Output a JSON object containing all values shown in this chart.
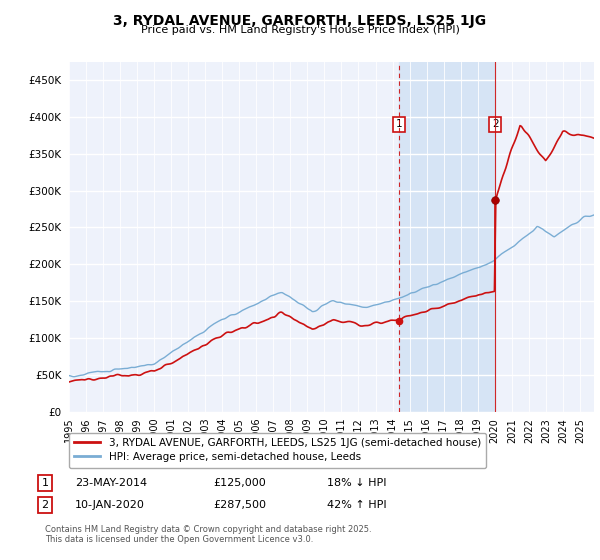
{
  "title": "3, RYDAL AVENUE, GARFORTH, LEEDS, LS25 1JG",
  "subtitle": "Price paid vs. HM Land Registry's House Price Index (HPI)",
  "ytick_values": [
    0,
    50000,
    100000,
    150000,
    200000,
    250000,
    300000,
    350000,
    400000,
    450000
  ],
  "ylim": [
    0,
    475000
  ],
  "xlim_start": 1995.0,
  "xlim_end": 2025.83,
  "hpi_color": "#7aadd4",
  "price_color": "#cc1111",
  "sale1_date": "23-MAY-2014",
  "sale1_price": 125000,
  "sale1_label": "18% ↓ HPI",
  "sale1_year": 2014.38,
  "sale2_date": "10-JAN-2020",
  "sale2_price": 287500,
  "sale2_label": "42% ↑ HPI",
  "sale2_year": 2020.03,
  "legend_property": "3, RYDAL AVENUE, GARFORTH, LEEDS, LS25 1JG (semi-detached house)",
  "legend_hpi": "HPI: Average price, semi-detached house, Leeds",
  "footnote": "Contains HM Land Registry data © Crown copyright and database right 2025.\nThis data is licensed under the Open Government Licence v3.0.",
  "background_color": "#ffffff",
  "plot_bg_color": "#eef2fb",
  "grid_color": "#ffffff",
  "span_color": "#d6e4f5",
  "marker1_y": 390000,
  "marker2_y": 390000
}
